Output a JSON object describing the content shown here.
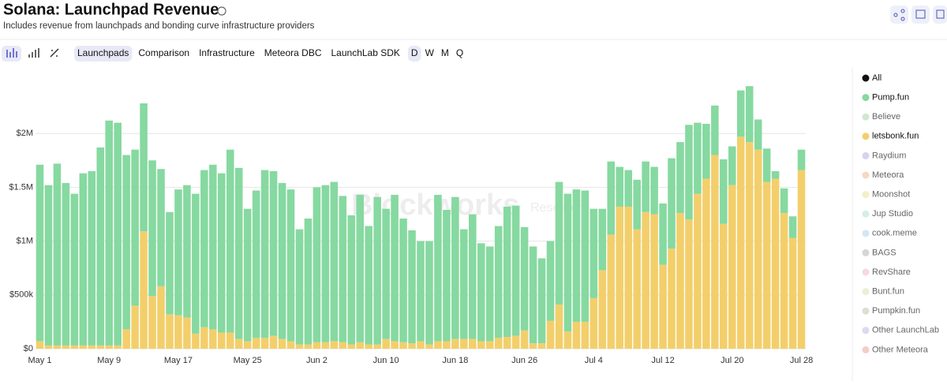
{
  "header": {
    "title": "Solana: Launchpad Revenue",
    "subtitle": "Includes revenue from launchpads and bonding curve infrastructure providers"
  },
  "toolbar": {
    "tabs": [
      "Launchpads",
      "Comparison",
      "Infrastructure",
      "Meteora DBC",
      "LaunchLab SDK"
    ],
    "active_tab": "Launchpads",
    "intervals": [
      "D",
      "W",
      "M",
      "Q"
    ],
    "active_interval": "D"
  },
  "watermark": [
    "Blockworks",
    "Research"
  ],
  "chart_data": {
    "type": "stacked_bar",
    "categories": [
      "May 1",
      null,
      null,
      null,
      null,
      null,
      null,
      null,
      "May 9",
      null,
      null,
      null,
      null,
      null,
      null,
      null,
      "May 17",
      null,
      null,
      null,
      null,
      null,
      null,
      null,
      "May 25",
      null,
      null,
      null,
      null,
      null,
      null,
      null,
      "Jun 2",
      null,
      null,
      null,
      null,
      null,
      null,
      null,
      "Jun 10",
      null,
      null,
      null,
      null,
      null,
      null,
      null,
      "Jun 18",
      null,
      null,
      null,
      null,
      null,
      null,
      null,
      "Jun 26",
      null,
      null,
      null,
      null,
      null,
      null,
      null,
      "Jul 4",
      null,
      null,
      null,
      null,
      null,
      null,
      null,
      "Jul 12",
      null,
      null,
      null,
      null,
      null,
      null,
      null,
      "Jul 20",
      null,
      null,
      null,
      null,
      null,
      null,
      null,
      "Jul 28"
    ],
    "ylim": [
      0,
      2500000
    ],
    "yticks": [
      {
        "value": 0,
        "label": "$0"
      },
      {
        "value": 500000,
        "label": "$500k"
      },
      {
        "value": 1000000,
        "label": "$1M"
      },
      {
        "value": 1500000,
        "label": "$1.5M"
      },
      {
        "value": 2000000,
        "label": "$2M"
      }
    ],
    "grid": true,
    "legend_all": "All",
    "legend_position": "right",
    "series": [
      {
        "name": "Pump.fun",
        "color": "#86d9a0",
        "stack_order": 2,
        "values": [
          1640000,
          1490000,
          1690000,
          1510000,
          1410000,
          1600000,
          1620000,
          1840000,
          2090000,
          2070000,
          1620000,
          1450000,
          1190000,
          1260000,
          1090000,
          950000,
          1170000,
          1230000,
          1300000,
          1460000,
          1530000,
          1480000,
          1700000,
          1590000,
          1230000,
          1370000,
          1560000,
          1530000,
          1450000,
          1410000,
          1070000,
          1170000,
          1440000,
          1460000,
          1480000,
          1360000,
          1200000,
          1370000,
          1100000,
          1370000,
          1210000,
          1360000,
          1150000,
          1050000,
          930000,
          960000,
          1360000,
          1220000,
          1320000,
          1020000,
          1160000,
          910000,
          880000,
          1040000,
          1210000,
          1210000,
          960000,
          900000,
          790000,
          740000,
          1140000,
          1280000,
          1230000,
          1220000,
          830000,
          570000,
          680000,
          370000,
          340000,
          460000,
          470000,
          440000,
          570000,
          840000,
          660000,
          880000,
          660000,
          510000,
          460000,
          600000,
          360000,
          430000,
          520000,
          280000,
          310000,
          70000,
          230000,
          200000,
          190000
        ]
      },
      {
        "name": "Believe",
        "color": "#cfe8d0"
      },
      {
        "name": "letsbonk.fun",
        "color": "#f3cf6b",
        "stack_order": 1,
        "values": [
          70000,
          30000,
          30000,
          30000,
          30000,
          30000,
          30000,
          30000,
          30000,
          30000,
          180000,
          400000,
          1090000,
          490000,
          580000,
          320000,
          310000,
          290000,
          140000,
          200000,
          180000,
          150000,
          150000,
          90000,
          70000,
          100000,
          100000,
          120000,
          90000,
          70000,
          40000,
          40000,
          60000,
          60000,
          70000,
          60000,
          40000,
          60000,
          40000,
          40000,
          90000,
          70000,
          60000,
          50000,
          70000,
          40000,
          70000,
          70000,
          90000,
          90000,
          90000,
          70000,
          70000,
          100000,
          110000,
          120000,
          170000,
          50000,
          50000,
          260000,
          410000,
          160000,
          250000,
          250000,
          470000,
          730000,
          1060000,
          1320000,
          1320000,
          1110000,
          1270000,
          1250000,
          780000,
          930000,
          1260000,
          1200000,
          1440000,
          1580000,
          1800000,
          1160000,
          1520000,
          1970000,
          1920000,
          1850000,
          1550000,
          1580000,
          1260000,
          1030000,
          1660000
        ]
      },
      {
        "name": "Raydium",
        "color": "#d6d3f0"
      },
      {
        "name": "Meteora",
        "color": "#f9d7c2"
      },
      {
        "name": "Moonshot",
        "color": "#f4efc4"
      },
      {
        "name": "Jup Studio",
        "color": "#d2f0e2"
      },
      {
        "name": "cook.meme",
        "color": "#d3e7f4"
      },
      {
        "name": "BAGS",
        "color": "#d6d6d6"
      },
      {
        "name": "RevShare",
        "color": "#f7d8df"
      },
      {
        "name": "Bunt.fun",
        "color": "#ecefd6"
      },
      {
        "name": "Pumpkin.fun",
        "color": "#dfded0"
      },
      {
        "name": "Other LaunchLab",
        "color": "#dadaf2"
      },
      {
        "name": "Other Meteora",
        "color": "#f4cdc7"
      }
    ]
  }
}
